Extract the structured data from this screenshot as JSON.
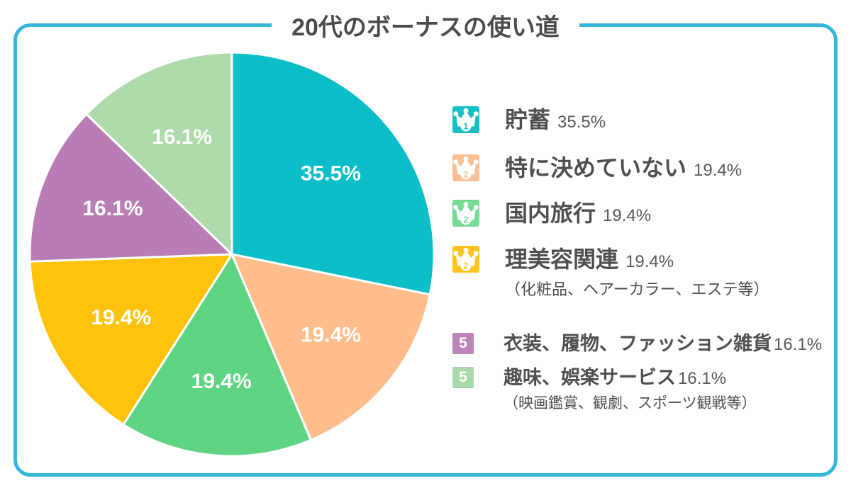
{
  "title": "20代のボーナスの使い道",
  "colors": {
    "border": "#35B7DB",
    "title_text": "#4B4B4B",
    "legend_label_text": "#4F4F4F",
    "legend_percent_text": "#595959",
    "pie_label_text": "#FFFFFF"
  },
  "chart_data": {
    "type": "pie",
    "title": "20代のボーナスの使い道",
    "unit": "%",
    "start_angle_deg": 0,
    "direction": "clockwise",
    "labels_position": "inside",
    "slices": [
      {
        "label": "貯蓄",
        "value": 35.5,
        "display": "35.5%",
        "color": "#0BBEC7",
        "rank": "1"
      },
      {
        "label": "特に決めていない",
        "value": 19.4,
        "display": "19.4%",
        "color": "#FFBD8C",
        "rank": "2"
      },
      {
        "label": "国内旅行",
        "value": 19.4,
        "display": "19.4%",
        "color": "#5FD584",
        "rank": "2"
      },
      {
        "label": "理美容関連",
        "value": 19.4,
        "display": "19.4%",
        "color": "#FFC30D",
        "rank": "2"
      },
      {
        "label": "衣装、履物、ファッション雑貨",
        "value": 16.1,
        "display": "16.1%",
        "color": "#B97DB5",
        "rank": "5"
      },
      {
        "label": "趣味、娯楽サービス",
        "value": 16.1,
        "display": "16.1%",
        "color": "#AFDAAC",
        "rank": "5"
      }
    ]
  },
  "legend": {
    "items": [
      {
        "rank": "1",
        "badge": "crown",
        "label": "貯蓄",
        "percent": "35.5%",
        "color": "#14BFC7",
        "subtext": ""
      },
      {
        "rank": "2",
        "badge": "crown",
        "label": "特に決めていない",
        "percent": "19.4%",
        "color": "#FBC08F",
        "subtext": ""
      },
      {
        "rank": "2",
        "badge": "crown",
        "label": "国内旅行",
        "percent": "19.4%",
        "color": "#74DB92",
        "subtext": ""
      },
      {
        "rank": "2",
        "badge": "crown",
        "label": "理美容関連",
        "percent": "19.4%",
        "color": "#FFC31E",
        "subtext": "（化粧品、ヘアーカラー、エステ等）"
      },
      {
        "rank": "5",
        "badge": "square",
        "label": "衣装、履物、ファッション雑貨",
        "percent": "16.1%",
        "color": "#BC85BC",
        "subtext": ""
      },
      {
        "rank": "5",
        "badge": "square",
        "label": "趣味、娯楽サービス",
        "percent": "16.1%",
        "color": "#A9D8A9",
        "subtext": "（映画鑑賞、観劇、スポーツ観戦等）"
      }
    ]
  }
}
